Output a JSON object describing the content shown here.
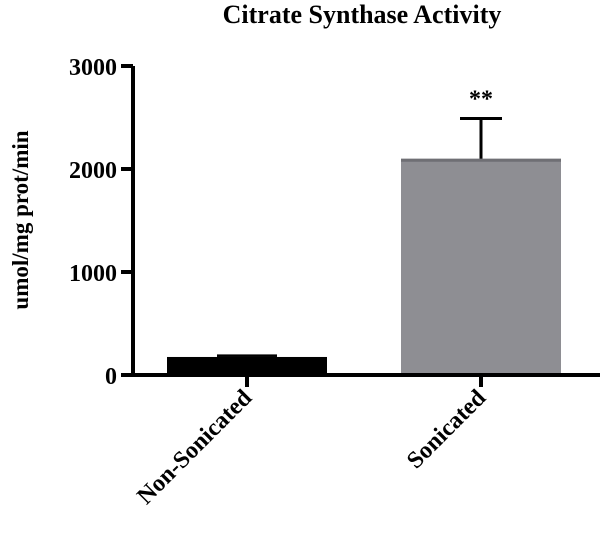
{
  "chart_data": {
    "type": "bar",
    "title": "Citrate Synthase Activity",
    "xlabel": "",
    "ylabel": "umol/mg prot/min",
    "categories": [
      "Non-Sonicated",
      "Sonicated"
    ],
    "values": [
      175,
      2100
    ],
    "error": [
      25,
      390
    ],
    "bar_colors": [
      "#000000",
      "#8e8e93"
    ],
    "ylim": [
      0,
      3000
    ],
    "yticks": [
      0,
      1000,
      2000,
      3000
    ],
    "ytick_labels": [
      "0",
      "1000",
      "2000",
      "3000"
    ],
    "grid": false,
    "annotations": [
      {
        "category": "Sonicated",
        "text": "**"
      }
    ]
  }
}
